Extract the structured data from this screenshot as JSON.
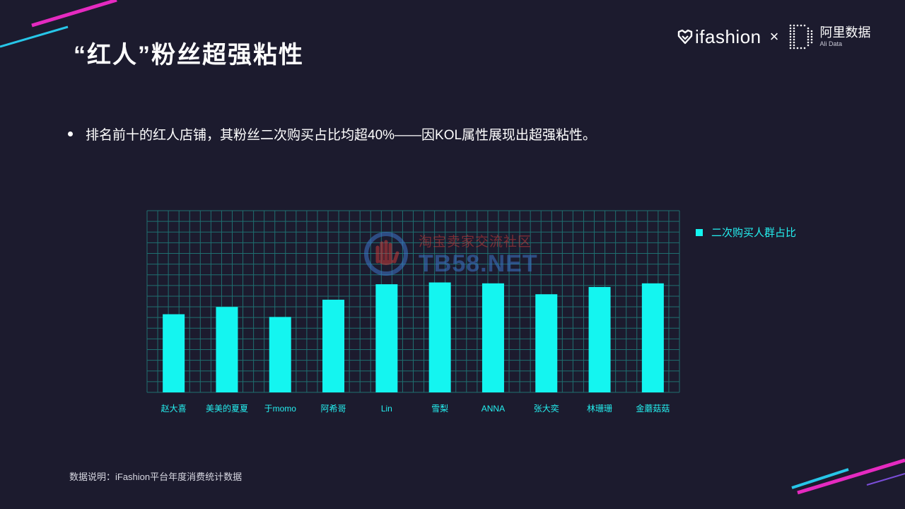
{
  "title": "“红人”粉丝超强粘性",
  "brand": {
    "ifashion": "ifashion",
    "times": "×",
    "ali_cn": "阿里数据",
    "ali_en": "Ali Data",
    "icons": [
      "heart-icon",
      "d-dotmatrix-icon"
    ]
  },
  "bullet": "排名前十的红人店铺，其粉丝二次购买占比均超40%——因KOL属性展现出超强粘性。",
  "watermark": {
    "cn": "淘宝卖家交流社区",
    "en": "TB58.NET"
  },
  "footer": "数据说明：iFashion平台年度消费统计数据",
  "colors": {
    "background": "#1c1b2e",
    "bar": "#14f5f0",
    "grid": "#1f6f70",
    "accent_pink": "#e52ac0",
    "accent_cyan": "#27c6e8"
  },
  "chart_data": {
    "type": "bar",
    "categories": [
      "赵大喜",
      "美美的夏夏",
      "于momo",
      "阿希哥",
      "Lin",
      "雪梨",
      "ANNA",
      "张大奕",
      "林珊珊",
      "金蘑菇菇"
    ],
    "series": [
      {
        "name": "二次购买人群占比",
        "values": [
          43,
          47,
          41.5,
          51,
          59.5,
          60.5,
          60,
          54,
          58,
          60
        ]
      }
    ],
    "ylim": [
      0,
      100
    ],
    "grid": true,
    "legend_position": "right",
    "title": "",
    "xlabel": "",
    "ylabel": ""
  }
}
